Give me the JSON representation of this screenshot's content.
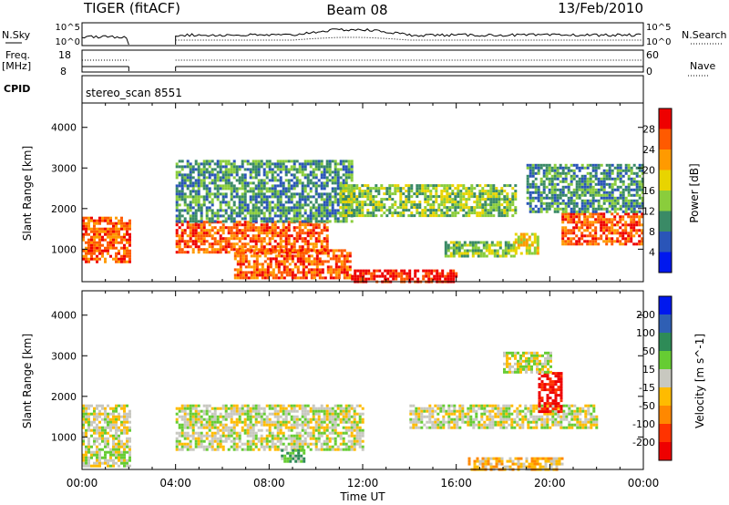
{
  "header": {
    "station": "TIGER (fitACF)",
    "beam": "Beam 08",
    "date": "13/Feb/2010"
  },
  "strips": {
    "nsky_label": "N.Sky",
    "nsearch_label": "N.Search",
    "noise_ticks_left": [
      "10^5",
      "10^0"
    ],
    "noise_ticks_right": [
      "10^5",
      "10^0"
    ],
    "freq_label_1": "Freq.",
    "freq_label_2": "[MHz]",
    "freq_ticks": [
      "18",
      "8"
    ],
    "nave_label": "Nave",
    "nave_ticks": [
      "60",
      "0"
    ],
    "cpid_label": "CPID",
    "cpid_value": "stereo_scan 8551"
  },
  "chart_data": [
    {
      "type": "heatmap",
      "name": "power",
      "ylabel": "Slant Range [km]",
      "xlabel": "",
      "yticks": [
        1000,
        2000,
        3000,
        4000
      ],
      "ylim": [
        200,
        4600
      ],
      "xlim": [
        0,
        24
      ],
      "colorbar": {
        "label": "Power [dB]",
        "ticks": [
          "4",
          "8",
          "12",
          "16",
          "20",
          "24",
          "28"
        ],
        "colors": [
          "#0018ee",
          "#2a55b8",
          "#3a8a66",
          "#8acd3c",
          "#e8d400",
          "#ff9a00",
          "#ff5a00",
          "#ee0000"
        ]
      },
      "data_gap_hours": [
        2,
        4
      ],
      "echo_regions": [
        {
          "t0": 0.0,
          "t1": 2.0,
          "r0": 700,
          "r1": 1800,
          "level": 6
        },
        {
          "t0": 4.0,
          "t1": 10.5,
          "r0": 900,
          "r1": 1700,
          "level": 6
        },
        {
          "t0": 4.0,
          "t1": 11.5,
          "r0": 1700,
          "r1": 3200,
          "level": 2
        },
        {
          "t0": 6.5,
          "t1": 11.5,
          "r0": 300,
          "r1": 1000,
          "level": 6
        },
        {
          "t0": 11.5,
          "t1": 16.0,
          "r0": 200,
          "r1": 500,
          "level": 7
        },
        {
          "t0": 11.0,
          "t1": 18.5,
          "r0": 1800,
          "r1": 2600,
          "level": 3
        },
        {
          "t0": 15.5,
          "t1": 18.5,
          "r0": 800,
          "r1": 1200,
          "level": 3
        },
        {
          "t0": 18.5,
          "t1": 19.5,
          "r0": 900,
          "r1": 1400,
          "level": 4
        },
        {
          "t0": 20.5,
          "t1": 24.0,
          "r0": 1100,
          "r1": 1900,
          "level": 6
        },
        {
          "t0": 19.0,
          "t1": 24.0,
          "r0": 1900,
          "r1": 3100,
          "level": 2
        }
      ]
    },
    {
      "type": "heatmap",
      "name": "velocity",
      "ylabel": "Slant Range [km]",
      "xlabel": "Time UT",
      "yticks": [
        1000,
        2000,
        3000,
        4000
      ],
      "ylim": [
        200,
        4600
      ],
      "xlim": [
        0,
        24
      ],
      "xticks": [
        "00:00",
        "04:00",
        "08:00",
        "12:00",
        "16:00",
        "20:00",
        "00:00"
      ],
      "colorbar": {
        "label": "Velocity [m s^-1]",
        "ticks": [
          "200",
          "100",
          "50",
          "15",
          "-15",
          "-50",
          "-100",
          "-200"
        ],
        "colors": [
          "#0018ee",
          "#2f5fb4",
          "#2e8b57",
          "#66cc33",
          "#c8c8c0",
          "#ffbb00",
          "#ff8800",
          "#ff3300",
          "#ee0000"
        ]
      },
      "data_gap_hours": [
        2,
        4
      ],
      "echo_regions": [
        {
          "t0": 0.0,
          "t1": 2.0,
          "r0": 300,
          "r1": 1800,
          "level": 4
        },
        {
          "t0": 4.0,
          "t1": 12.0,
          "r0": 700,
          "r1": 1800,
          "level": 4
        },
        {
          "t0": 8.5,
          "t1": 9.5,
          "r0": 400,
          "r1": 700,
          "level": 3
        },
        {
          "t0": 14.0,
          "t1": 22.0,
          "r0": 1200,
          "r1": 1800,
          "level": 4
        },
        {
          "t0": 16.5,
          "t1": 20.5,
          "r0": 200,
          "r1": 500,
          "level": 5
        },
        {
          "t0": 19.5,
          "t1": 20.5,
          "r0": 1600,
          "r1": 2600,
          "level": 8
        },
        {
          "t0": 18.0,
          "t1": 20.0,
          "r0": 2600,
          "r1": 3100,
          "level": 4
        }
      ]
    }
  ]
}
